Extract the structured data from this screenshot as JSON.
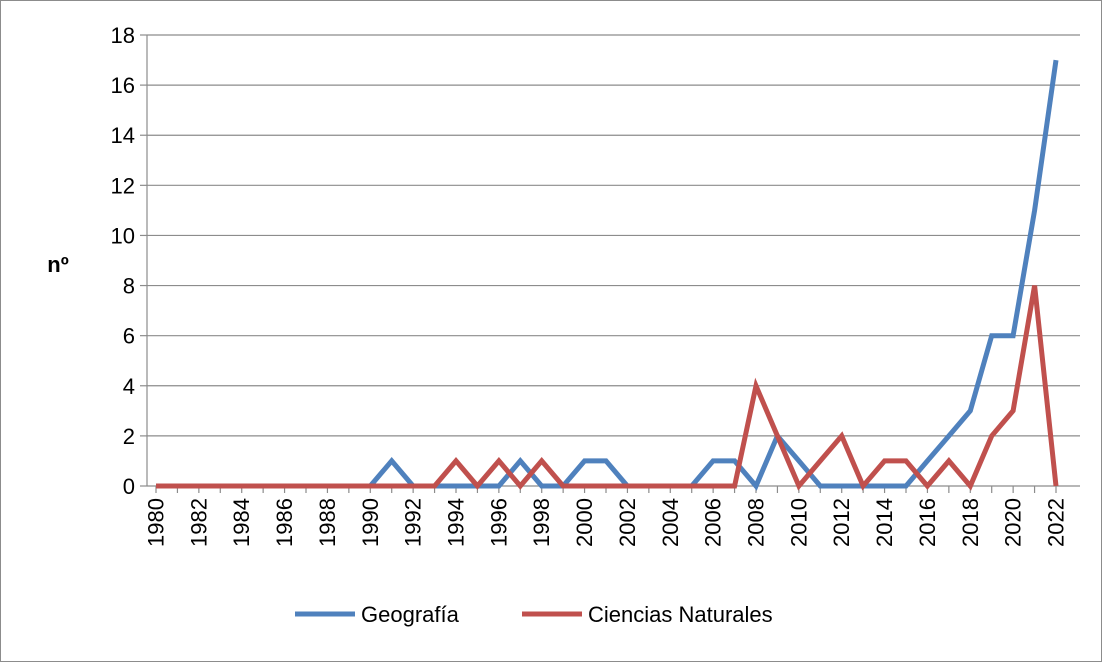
{
  "chart_data": {
    "type": "line",
    "ylabel": "nº",
    "xlabel": "",
    "ylim": [
      0,
      18
    ],
    "y_ticks": [
      0,
      2,
      4,
      6,
      8,
      10,
      12,
      14,
      16,
      18
    ],
    "x": [
      1980,
      1981,
      1982,
      1983,
      1984,
      1985,
      1986,
      1987,
      1988,
      1989,
      1990,
      1991,
      1992,
      1993,
      1994,
      1995,
      1996,
      1997,
      1998,
      1999,
      2000,
      2001,
      2002,
      2003,
      2004,
      2005,
      2006,
      2007,
      2008,
      2009,
      2010,
      2011,
      2012,
      2013,
      2014,
      2015,
      2016,
      2017,
      2018,
      2019,
      2020,
      2021,
      2022
    ],
    "x_tick_labels": [
      "1980",
      "1982",
      "1984",
      "1986",
      "1988",
      "1990",
      "1992",
      "1994",
      "1996",
      "1998",
      "2000",
      "2002",
      "2004",
      "2006",
      "2008",
      "2010",
      "2012",
      "2014",
      "2016",
      "2018",
      "2020",
      "2022"
    ],
    "grid": "horizontal",
    "legend_position": "bottom",
    "series": [
      {
        "name": "Geografía",
        "color": "#4f81bd",
        "values": [
          0,
          0,
          0,
          0,
          0,
          0,
          0,
          0,
          0,
          0,
          0,
          1,
          0,
          0,
          0,
          0,
          0,
          1,
          0,
          0,
          1,
          1,
          0,
          0,
          0,
          0,
          1,
          1,
          0,
          2,
          1,
          0,
          0,
          0,
          0,
          0,
          1,
          2,
          3,
          6,
          6,
          11,
          17
        ]
      },
      {
        "name": "Ciencias Naturales",
        "color": "#c0504d",
        "values": [
          0,
          0,
          0,
          0,
          0,
          0,
          0,
          0,
          0,
          0,
          0,
          0,
          0,
          0,
          1,
          0,
          1,
          0,
          1,
          0,
          0,
          0,
          0,
          0,
          0,
          0,
          0,
          0,
          4,
          2,
          0,
          1,
          2,
          0,
          1,
          1,
          0,
          1,
          0,
          2,
          3,
          8,
          0
        ]
      }
    ]
  }
}
